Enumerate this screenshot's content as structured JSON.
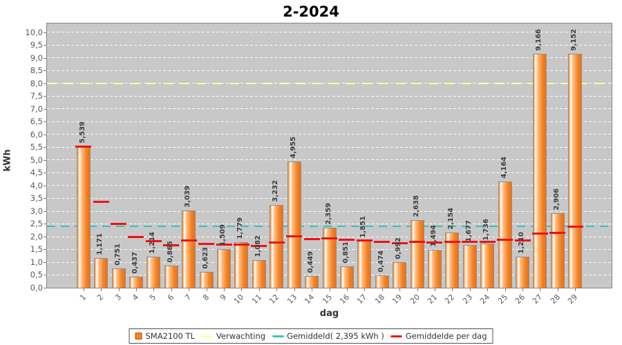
{
  "title": "2-2024",
  "y_axis": {
    "label": "kWh",
    "tick_min": 0,
    "tick_max": 10,
    "tick_step": 0.5
  },
  "x_axis": {
    "label": "dag"
  },
  "legend": {
    "items": [
      {
        "label": "SMA2100 TL",
        "swatch": "bar-square",
        "color": "#f58220"
      },
      {
        "label": "Verwachting",
        "swatch": "dash",
        "color": "#ffff99"
      },
      {
        "label": "Gemiddeld( 2,395 kWh )",
        "swatch": "dash",
        "color": "#2fc5c5"
      },
      {
        "label": "Gemiddelde per dag",
        "swatch": "dash",
        "color": "#ee1111"
      }
    ]
  },
  "chart_data": {
    "type": "bar",
    "title": "2-2024",
    "xlabel": "dag",
    "ylabel": "kWh",
    "categories": [
      "1",
      "2",
      "3",
      "4",
      "5",
      "6",
      "7",
      "8",
      "9",
      "10",
      "11",
      "12",
      "13",
      "14",
      "15",
      "16",
      "17",
      "18",
      "19",
      "20",
      "21",
      "22",
      "23",
      "24",
      "25",
      "26",
      "27",
      "28",
      "29"
    ],
    "series": [
      {
        "name": "SMA2100 TL",
        "type": "bar",
        "values": [
          5.539,
          1.171,
          0.751,
          0.437,
          1.214,
          0.865,
          3.039,
          0.623,
          1.509,
          1.779,
          1.082,
          3.232,
          4.955,
          0.449,
          2.359,
          0.851,
          1.851,
          0.474,
          0.992,
          2.638,
          1.494,
          2.154,
          1.677,
          1.736,
          4.164,
          1.21,
          9.166,
          2.906,
          9.152
        ]
      },
      {
        "name": "Verwachting",
        "type": "hline-dashed",
        "value": 8.0
      },
      {
        "name": "Gemiddeld( 2,395 kWh )",
        "type": "hline-dashed",
        "value": 2.395
      },
      {
        "name": "Gemiddelde per dag",
        "type": "dash-per-category",
        "values": [
          5.539,
          3.355,
          2.487,
          1.975,
          1.822,
          1.663,
          1.859,
          1.705,
          1.683,
          1.693,
          1.637,
          1.77,
          2.015,
          1.903,
          1.934,
          1.866,
          1.865,
          1.788,
          1.746,
          1.791,
          1.776,
          1.794,
          1.788,
          1.786,
          1.881,
          1.856,
          2.126,
          2.154,
          2.395
        ]
      }
    ],
    "ylim": [
      0,
      10.35
    ],
    "ytick_step": 0.5,
    "grid": "horizontal-dashed-white",
    "legend_position": "bottom",
    "value_labels": "rotated-90-above-bars, comma decimal, 3 decimals"
  },
  "colors": {
    "plot_bg": "#c8c8c8",
    "bar_light": "#ffc28a",
    "bar_main": "#f58220",
    "bar_dark": "#e9701c",
    "bar_border": "#8f8f8f",
    "expected_line": "#ffff99",
    "average_line": "#2fc5c5",
    "per_day_line": "#ee1111",
    "grid_line": "#ffffff",
    "tick_text": "#595959",
    "value_text": "#3d3d3d"
  }
}
